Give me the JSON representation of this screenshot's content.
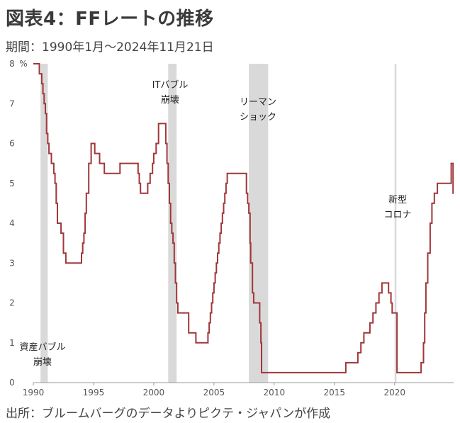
{
  "header": {
    "title": "図表4：FFレートの推移",
    "subtitle": "期間：1990年1月～2024年11月21日"
  },
  "footer": {
    "source": "出所：ブルームバーグのデータよりピクテ・ジャパンが作成"
  },
  "colors": {
    "line": "#a0363a",
    "band": "#d9d9d9",
    "axis": "#999999"
  },
  "chart_data": {
    "type": "line",
    "title": "",
    "xlabel": "",
    "ylabel": "",
    "y_unit_label": "%",
    "xlim": [
      1990,
      2024.9
    ],
    "ylim": [
      0,
      8
    ],
    "x_ticks": [
      1990,
      1995,
      2000,
      2005,
      2010,
      2015,
      2020
    ],
    "y_ticks": [
      0,
      1,
      2,
      3,
      4,
      5,
      6,
      7,
      8
    ],
    "grid": false,
    "legend": "none",
    "shaded_periods": [
      {
        "start": 1990.6,
        "end": 1991.2,
        "label_lines": [
          "資産バブル",
          "崩壊"
        ]
      },
      {
        "start": 2001.2,
        "end": 2001.9,
        "label_lines": [
          "ITバブル",
          "崩壊"
        ]
      },
      {
        "start": 2007.9,
        "end": 2009.5,
        "label_lines": [
          "リーマン",
          "ショック"
        ]
      },
      {
        "start": 2020.0,
        "end": 2020.15,
        "label_lines": [
          "新型",
          "コロナ"
        ]
      }
    ],
    "series": [
      {
        "type": "step",
        "x": [
          1990.0,
          1990.5,
          1990.7,
          1990.8,
          1990.9,
          1991.0,
          1991.1,
          1991.2,
          1991.3,
          1991.5,
          1991.7,
          1991.8,
          1991.9,
          1992.0,
          1992.3,
          1992.5,
          1992.7,
          1993.0,
          1994.0,
          1994.1,
          1994.2,
          1994.3,
          1994.4,
          1994.6,
          1994.8,
          1995.0,
          1995.1,
          1995.5,
          1995.9,
          1996.0,
          1997.2,
          1998.7,
          1998.8,
          1998.9,
          1999.5,
          1999.7,
          1999.9,
          2000.0,
          2000.2,
          2000.4,
          2001.0,
          2001.1,
          2001.2,
          2001.3,
          2001.4,
          2001.5,
          2001.6,
          2001.7,
          2001.8,
          2001.9,
          2002.0,
          2002.9,
          2003.5,
          2004.5,
          2004.6,
          2004.7,
          2004.8,
          2004.9,
          2005.0,
          2005.1,
          2005.2,
          2005.3,
          2005.4,
          2005.5,
          2005.6,
          2005.7,
          2005.8,
          2005.9,
          2006.0,
          2006.1,
          2006.2,
          2006.3,
          2006.4,
          2006.5,
          2007.7,
          2007.8,
          2007.9,
          2008.0,
          2008.05,
          2008.2,
          2008.3,
          2008.8,
          2008.9,
          2008.95,
          2015.95,
          2016.95,
          2017.2,
          2017.45,
          2017.95,
          2018.2,
          2018.45,
          2018.7,
          2018.95,
          2019.5,
          2019.7,
          2019.8,
          2020.2,
          2022.2,
          2022.4,
          2022.5,
          2022.6,
          2022.75,
          2022.95,
          2023.1,
          2023.3,
          2023.55,
          2024.7,
          2024.85
        ],
        "y": [
          8.0,
          7.75,
          7.5,
          7.25,
          7.0,
          6.75,
          6.25,
          6.0,
          5.75,
          5.5,
          5.25,
          5.0,
          4.5,
          4.0,
          3.75,
          3.25,
          3.0,
          3.0,
          3.25,
          3.5,
          3.75,
          4.25,
          4.75,
          5.5,
          6.0,
          6.0,
          5.75,
          5.5,
          5.25,
          5.25,
          5.5,
          5.25,
          5.0,
          4.75,
          5.0,
          5.25,
          5.5,
          5.75,
          6.0,
          6.5,
          6.0,
          5.5,
          5.0,
          4.5,
          4.0,
          3.75,
          3.5,
          3.0,
          2.5,
          2.0,
          1.75,
          1.25,
          1.0,
          1.25,
          1.5,
          1.75,
          2.0,
          2.25,
          2.5,
          2.75,
          3.0,
          3.25,
          3.5,
          3.75,
          4.0,
          4.25,
          4.5,
          4.75,
          5.0,
          5.25,
          5.25,
          5.25,
          5.25,
          5.25,
          4.75,
          4.5,
          4.25,
          3.5,
          3.0,
          2.25,
          2.0,
          1.5,
          1.0,
          0.25,
          0.5,
          0.75,
          1.0,
          1.25,
          1.5,
          1.75,
          2.0,
          2.25,
          2.5,
          2.25,
          2.0,
          1.75,
          0.25,
          0.5,
          1.0,
          1.75,
          2.5,
          3.25,
          4.0,
          4.5,
          4.75,
          5.0,
          5.5,
          4.75
        ]
      }
    ]
  }
}
